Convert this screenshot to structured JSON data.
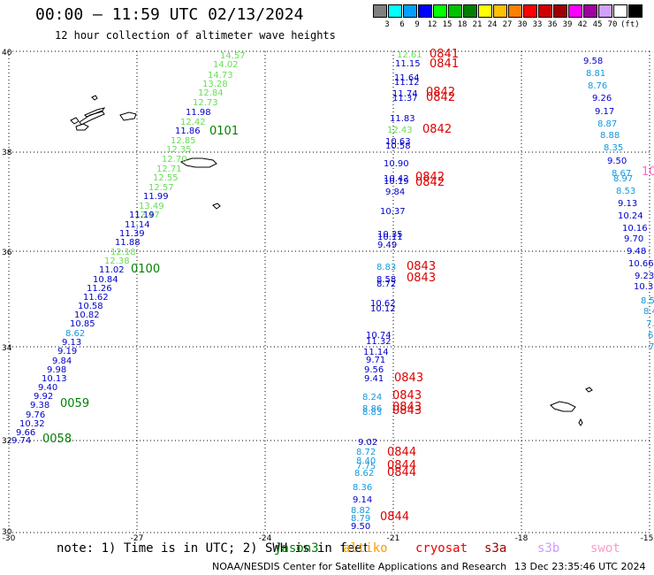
{
  "title": "00:00 – 11:59 UTC 02/13/2024",
  "subtitle": "12 hour collection of altimeter wave heights",
  "legend": {
    "colors": [
      "#808080",
      "#00ffff",
      "#00a0ff",
      "#0000ff",
      "#00ff00",
      "#00c000",
      "#008000",
      "#ffff00",
      "#ffc000",
      "#ff8000",
      "#ff0000",
      "#d00000",
      "#a00000",
      "#ff00ff",
      "#a000a0",
      "#d0a0ff",
      "#ffffff",
      "#000000"
    ],
    "labels": [
      "3",
      "6",
      "9",
      "12",
      "15",
      "18",
      "21",
      "24",
      "27",
      "30",
      "33",
      "36",
      "39",
      "42",
      "45",
      "70",
      "(ft)"
    ]
  },
  "axes": {
    "lon_labels": [
      "-30",
      "-27",
      "-24",
      "-21",
      "-18",
      "-15"
    ],
    "lat_labels": [
      "40",
      "38",
      "36",
      "34",
      "32",
      "30"
    ]
  },
  "passes": [
    {
      "name": "pass-west",
      "values": [
        {
          "v": "14.57",
          "c": "#66dd55"
        },
        {
          "v": "14.02",
          "c": "#66dd55"
        },
        {
          "v": "14.73",
          "c": "#66dd55"
        },
        {
          "v": "13.28",
          "c": "#66dd55"
        },
        {
          "v": "12.84",
          "c": "#66dd55"
        },
        {
          "v": "12.73",
          "c": "#66dd55"
        },
        {
          "v": "11.98",
          "c": "#0000cc"
        },
        {
          "v": "12.42",
          "c": "#66dd55"
        },
        {
          "v": "11.86",
          "c": "#0000cc"
        },
        {
          "v": "12.85",
          "c": "#66dd55"
        },
        {
          "v": "12.35",
          "c": "#66dd55"
        },
        {
          "v": "12.70",
          "c": "#66dd55"
        },
        {
          "v": "12.71",
          "c": "#66dd55"
        },
        {
          "v": "12.55",
          "c": "#66dd55"
        },
        {
          "v": "12.57",
          "c": "#66dd55"
        },
        {
          "v": "11.99",
          "c": "#0000cc"
        },
        {
          "v": "13.49",
          "c": "#66dd55"
        },
        {
          "v": "12.47",
          "c": "#66dd55"
        },
        {
          "v": "11.19",
          "c": "#0000cc"
        },
        {
          "v": "11.14",
          "c": "#0000cc"
        },
        {
          "v": "11.39",
          "c": "#0000cc"
        },
        {
          "v": "11.88",
          "c": "#0000cc"
        },
        {
          "v": "12.18",
          "c": "#66dd55"
        },
        {
          "v": "12.38",
          "c": "#66dd55"
        },
        {
          "v": "11.02",
          "c": "#0000cc"
        },
        {
          "v": "10.84",
          "c": "#0000cc"
        },
        {
          "v": "11.26",
          "c": "#0000cc"
        },
        {
          "v": "11.62",
          "c": "#0000cc"
        },
        {
          "v": "10.58",
          "c": "#0000cc"
        },
        {
          "v": "10.82",
          "c": "#0000cc"
        },
        {
          "v": "10.85",
          "c": "#0000cc"
        },
        {
          "v": "8.62",
          "c": "#1199dd"
        },
        {
          "v": "9.13",
          "c": "#0000cc"
        },
        {
          "v": "9.19",
          "c": "#0000cc"
        },
        {
          "v": "9.84",
          "c": "#0000cc"
        },
        {
          "v": "9.98",
          "c": "#0000cc"
        },
        {
          "v": "10.13",
          "c": "#0000cc"
        },
        {
          "v": "9.40",
          "c": "#0000cc"
        },
        {
          "v": "9.92",
          "c": "#0000cc"
        },
        {
          "v": "9.38",
          "c": "#0000cc"
        },
        {
          "v": "9.76",
          "c": "#0000cc"
        },
        {
          "v": "10.32",
          "c": "#0000cc"
        },
        {
          "v": "9.66",
          "c": "#0000cc"
        },
        {
          "v": "9.74",
          "c": "#0000cc"
        }
      ]
    },
    {
      "name": "pass-center",
      "values": [
        {
          "v": "12.61",
          "c": "#66dd55"
        },
        {
          "v": "11.15",
          "c": "#0000cc"
        },
        {
          "v": "11.64",
          "c": "#0000cc"
        },
        {
          "v": "11.12",
          "c": "#0000cc"
        },
        {
          "v": "11.74",
          "c": "#0000cc"
        },
        {
          "v": "11.37",
          "c": "#0000cc"
        },
        {
          "v": "11.83",
          "c": "#0000cc"
        },
        {
          "v": "12.43",
          "c": "#66dd55"
        },
        {
          "v": "10.63",
          "c": "#0000cc"
        },
        {
          "v": "10.58",
          "c": "#0000cc"
        },
        {
          "v": "10.90",
          "c": "#0000cc"
        },
        {
          "v": "10.42",
          "c": "#0000cc"
        },
        {
          "v": "10.19",
          "c": "#0000cc"
        },
        {
          "v": "9.84",
          "c": "#0000cc"
        },
        {
          "v": "10.37",
          "c": "#0000cc"
        },
        {
          "v": "10.35",
          "c": "#0000cc"
        },
        {
          "v": "10.11",
          "c": "#0000cc"
        },
        {
          "v": "9.49",
          "c": "#0000cc"
        },
        {
          "v": "8.83",
          "c": "#1199dd"
        },
        {
          "v": "8.58",
          "c": "#0000cc"
        },
        {
          "v": "8.72",
          "c": "#0000cc"
        },
        {
          "v": "10.62",
          "c": "#0000cc"
        },
        {
          "v": "10.12",
          "c": "#0000cc"
        },
        {
          "v": "10.74",
          "c": "#0000cc"
        },
        {
          "v": "11.32",
          "c": "#0000cc"
        },
        {
          "v": "11.14",
          "c": "#0000cc"
        },
        {
          "v": "9.71",
          "c": "#0000cc"
        },
        {
          "v": "9.56",
          "c": "#0000cc"
        },
        {
          "v": "9.41",
          "c": "#0000cc"
        },
        {
          "v": "8.24",
          "c": "#1199dd"
        },
        {
          "v": "8.86",
          "c": "#1199dd"
        },
        {
          "v": "8.83",
          "c": "#1199dd"
        },
        {
          "v": "9.02",
          "c": "#0000cc"
        },
        {
          "v": "8.72",
          "c": "#1199dd"
        },
        {
          "v": "8.40",
          "c": "#1199dd"
        },
        {
          "v": "7.75",
          "c": "#1199dd"
        },
        {
          "v": "8.62",
          "c": "#1199dd"
        },
        {
          "v": "8.36",
          "c": "#1199dd"
        },
        {
          "v": "9.14",
          "c": "#0000cc"
        },
        {
          "v": "8.82",
          "c": "#1199dd"
        },
        {
          "v": "8.79",
          "c": "#1199dd"
        },
        {
          "v": "9.50",
          "c": "#0000cc"
        }
      ]
    },
    {
      "name": "pass-east",
      "values": [
        {
          "v": "9.58",
          "c": "#0000cc"
        },
        {
          "v": "8.81",
          "c": "#1199dd"
        },
        {
          "v": "8.76",
          "c": "#1199dd"
        },
        {
          "v": "9.26",
          "c": "#0000cc"
        },
        {
          "v": "9.17",
          "c": "#0000cc"
        },
        {
          "v": "8.87",
          "c": "#1199dd"
        },
        {
          "v": "8.88",
          "c": "#1199dd"
        },
        {
          "v": "8.35",
          "c": "#1199dd"
        },
        {
          "v": "9.50",
          "c": "#0000cc"
        },
        {
          "v": "8.67",
          "c": "#1199dd"
        },
        {
          "v": "8.97",
          "c": "#1199dd"
        },
        {
          "v": "8.53",
          "c": "#1199dd"
        },
        {
          "v": "9.13",
          "c": "#0000cc"
        },
        {
          "v": "10.24",
          "c": "#0000cc"
        },
        {
          "v": "10.16",
          "c": "#0000cc"
        },
        {
          "v": "9.70",
          "c": "#0000cc"
        },
        {
          "v": "9.48",
          "c": "#0000cc"
        },
        {
          "v": "10.66",
          "c": "#0000cc"
        },
        {
          "v": "9.23",
          "c": "#0000cc"
        },
        {
          "v": "10.3",
          "c": "#0000cc"
        },
        {
          "v": "8.5",
          "c": "#1199dd"
        },
        {
          "v": "8.4",
          "c": "#1199dd"
        },
        {
          "v": "7.",
          "c": "#1199dd"
        },
        {
          "v": "6.",
          "c": "#1199dd"
        },
        {
          "v": "7.",
          "c": "#1199dd"
        }
      ]
    }
  ],
  "times": [
    {
      "v": "0101",
      "c": "#008000"
    },
    {
      "v": "0100",
      "c": "#008000"
    },
    {
      "v": "0059",
      "c": "#008000"
    },
    {
      "v": "0058",
      "c": "#008000"
    },
    {
      "v": "0841",
      "c": "#dd0000"
    },
    {
      "v": "0841",
      "c": "#dd0000"
    },
    {
      "v": "0842",
      "c": "#dd0000"
    },
    {
      "v": "0842",
      "c": "#dd0000"
    },
    {
      "v": "0842",
      "c": "#dd0000"
    },
    {
      "v": "0842",
      "c": "#dd0000"
    },
    {
      "v": "0842",
      "c": "#dd0000"
    },
    {
      "v": "0843",
      "c": "#dd0000"
    },
    {
      "v": "0843",
      "c": "#dd0000"
    },
    {
      "v": "0843",
      "c": "#dd0000"
    },
    {
      "v": "0843",
      "c": "#dd0000"
    },
    {
      "v": "0843",
      "c": "#dd0000"
    },
    {
      "v": "0843",
      "c": "#dd0000"
    },
    {
      "v": "0844",
      "c": "#dd0000"
    },
    {
      "v": "0844",
      "c": "#dd0000"
    },
    {
      "v": "0844",
      "c": "#dd0000"
    },
    {
      "v": "0844",
      "c": "#dd0000"
    },
    {
      "v": "10",
      "c": "#ff66cc"
    }
  ],
  "note": "note: 1) Time is in UTC; 2) SWH is in feet",
  "satellites": [
    {
      "name": "jason3",
      "color": "#008000"
    },
    {
      "name": "altiko",
      "color": "#ff9900"
    },
    {
      "name": "cryosat",
      "color": "#ee0000"
    },
    {
      "name": "s3a",
      "color": "#990000"
    },
    {
      "name": "s3b",
      "color": "#cc99ff"
    },
    {
      "name": "swot",
      "color": "#ff99cc"
    }
  ],
  "credit": "NOAA/NESDIS Center for Satellite Applications and Research",
  "timestamp": "13 Dec 23:35:46 UTC 2024"
}
